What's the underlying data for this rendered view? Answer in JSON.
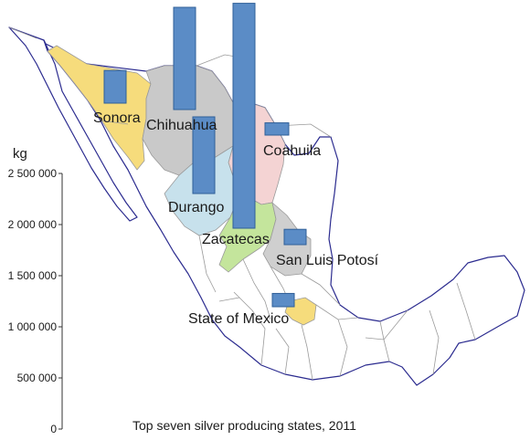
{
  "chart_data": {
    "type": "bar",
    "title": "Top seven silver producing states, 2011",
    "ylabel": "kg",
    "ylim": [
      0,
      2500000
    ],
    "yticks": [
      0,
      500000,
      1000000,
      1500000,
      2000000,
      2500000
    ],
    "ytick_labels": [
      "0",
      "500 000",
      "1 000 000",
      "1 500 000",
      "2 000 000",
      "2 500 000"
    ],
    "categories": [
      "Sonora",
      "Chihuahua",
      "Coahuila",
      "Durango",
      "Zacatecas",
      "San Luis Potosí",
      "State of Mexico"
    ],
    "values": [
      320000,
      1000000,
      120000,
      750000,
      2200000,
      150000,
      130000
    ],
    "colors": {
      "bar": "#5b8cc6",
      "Sonora": "#f6dc7c",
      "Chihuahua": "#c9c9c9",
      "Coahuila": "#f4d3d3",
      "Durango": "#c7e1ec",
      "Zacatecas": "#c4e59c",
      "San Luis Potosí": "#cfcfcf",
      "State of Mexico": "#f6dc7c"
    }
  }
}
